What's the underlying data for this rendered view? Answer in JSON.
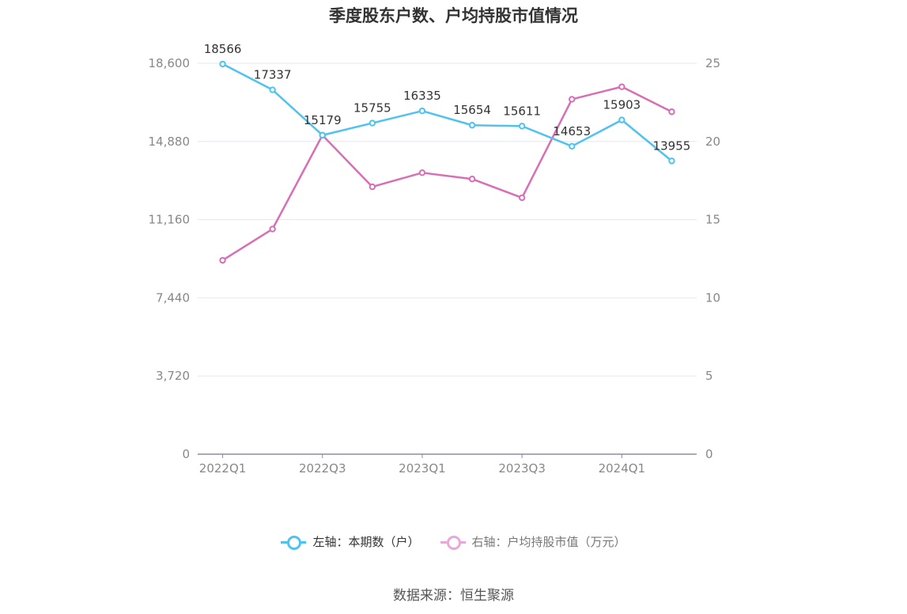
{
  "title": "季度股东户数、户均持股市值情况",
  "source": "数据来源：恒生聚源",
  "legend": {
    "left": "左轴：本期数（户）",
    "right": "右轴：户均持股市值（万元）"
  },
  "colors": {
    "left_series": "#4fc3f0",
    "right_series": "#d86fb6",
    "right_series_legend": "#e8a8d8",
    "grid": "#e4e7ef",
    "axis": "#8a8f9c",
    "tick_text": "#888888"
  },
  "chart_data": {
    "type": "line",
    "title": "季度股东户数、户均持股市值情况",
    "categories": [
      "2022Q1",
      "2022Q2",
      "2022Q3",
      "2022Q4",
      "2023Q1",
      "2023Q2",
      "2023Q3",
      "2023Q4",
      "2024Q1",
      "2024Q2"
    ],
    "x_tick_labels": [
      "2022Q1",
      "",
      "2022Q3",
      "",
      "2023Q1",
      "",
      "2023Q3",
      "",
      "2024Q1",
      ""
    ],
    "left_axis": {
      "ylim": [
        0,
        18600
      ],
      "ticks": [
        "0",
        "3,720",
        "7,440",
        "11,160",
        "14,880",
        "18,600"
      ]
    },
    "right_axis": {
      "ylim": [
        0,
        25
      ],
      "ticks": [
        "0",
        "5",
        "10",
        "15",
        "20",
        "25"
      ]
    },
    "series": [
      {
        "name": "左轴：本期数（户）",
        "axis": "left",
        "values": [
          18566,
          17337,
          15179,
          15755,
          16335,
          15654,
          15611,
          14653,
          15903,
          13955
        ],
        "labels": [
          "18566",
          "17337",
          "15179",
          "15755",
          "16335",
          "15654",
          "15611",
          "14653",
          "15903",
          "13955"
        ]
      },
      {
        "name": "右轴：户均持股市值（万元）",
        "axis": "right",
        "values": [
          12.4,
          14.4,
          20.4,
          17.1,
          18.0,
          17.6,
          16.4,
          22.7,
          23.5,
          21.9
        ]
      }
    ],
    "grid": true,
    "legend_position": "bottom-center"
  }
}
